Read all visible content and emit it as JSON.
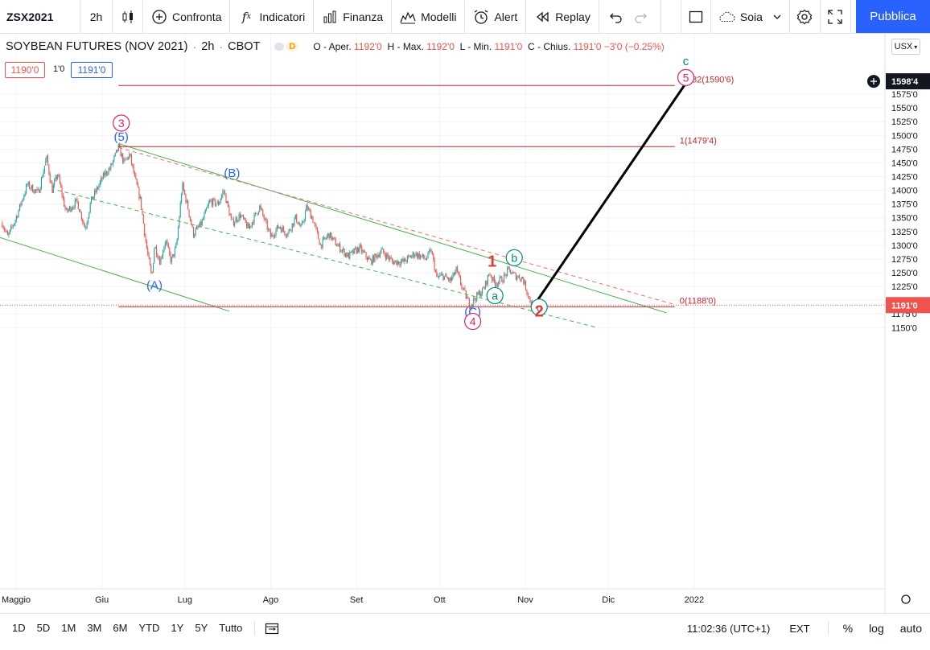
{
  "toolbar": {
    "symbol": "ZSX2021",
    "interval": "2h",
    "compare": "Confronta",
    "indicators": "Indicatori",
    "finance": "Finanza",
    "templates": "Modelli",
    "alert": "Alert",
    "replay": "Replay",
    "layout_name": "Soia",
    "publish": "Pubblica"
  },
  "legend": {
    "title": "SOYBEAN FUTURES (NOV 2021)",
    "interval": "2h",
    "exchange": "CBOT",
    "delay_badge": "D",
    "ohlc": {
      "o_label": "O - Aper.",
      "o": "1192'0",
      "h_label": "H - Max.",
      "h": "1192'0",
      "l_label": "L - Min.",
      "l": "1191'0",
      "c_label": "C - Chius.",
      "c": "1191'0",
      "change": "−3'0 (−0.25%)"
    },
    "bid": "1190'0",
    "spread": "1'0",
    "ask": "1191'0"
  },
  "currency": "USX",
  "colors": {
    "bull": "#26a69a",
    "bear": "#ef5350",
    "fib": "#c62828",
    "channel": "#4caf50",
    "channel_dashed_red": "#e57373",
    "wave_red": "#e53935",
    "wave_pink": "#e91e63",
    "wave_blue": "#2962ff",
    "wave_teal": "#00897b",
    "projection": "#000000",
    "accent": "#2962ff"
  },
  "chart_data": {
    "type": "candlestick",
    "x_axis": {
      "ticks": [
        "Maggio",
        "Giu",
        "Lug",
        "Ago",
        "Set",
        "Ott",
        "Nov",
        "Dic",
        "2022"
      ]
    },
    "y_axis": {
      "ticks": [
        "1150'0",
        "1175'0",
        "1200'0",
        "1225'0",
        "1250'0",
        "1275'0",
        "1300'0",
        "1325'0",
        "1350'0",
        "1375'0",
        "1400'0",
        "1425'0",
        "1450'0",
        "1475'0",
        "1500'0",
        "1525'0",
        "1550'0",
        "1575'0"
      ],
      "ylim": [
        1130,
        1615
      ]
    },
    "last_price_label": "1191'0",
    "crosshair_price_label": "1598'4",
    "price_path": [
      {
        "t": "2021-04-26",
        "p": 1340
      },
      {
        "t": "2021-04-28",
        "p": 1315
      },
      {
        "t": "2021-05-01",
        "p": 1350
      },
      {
        "t": "2021-05-05",
        "p": 1410
      },
      {
        "t": "2021-05-09",
        "p": 1395
      },
      {
        "t": "2021-05-12",
        "p": 1460
      },
      {
        "t": "2021-05-14",
        "p": 1400
      },
      {
        "t": "2021-05-16",
        "p": 1430
      },
      {
        "t": "2021-05-19",
        "p": 1360
      },
      {
        "t": "2021-05-23",
        "p": 1380
      },
      {
        "t": "2021-05-26",
        "p": 1330
      },
      {
        "t": "2021-05-28",
        "p": 1380
      },
      {
        "t": "2021-06-02",
        "p": 1430
      },
      {
        "t": "2021-06-04",
        "p": 1440
      },
      {
        "t": "2021-06-07",
        "p": 1478
      },
      {
        "t": "2021-06-09",
        "p": 1450
      },
      {
        "t": "2021-06-11",
        "p": 1465
      },
      {
        "t": "2021-06-13",
        "p": 1420
      },
      {
        "t": "2021-06-15",
        "p": 1380
      },
      {
        "t": "2021-06-17",
        "p": 1300
      },
      {
        "t": "2021-06-19",
        "p": 1240
      },
      {
        "t": "2021-06-20",
        "p": 1300
      },
      {
        "t": "2021-06-22",
        "p": 1270
      },
      {
        "t": "2021-06-24",
        "p": 1310
      },
      {
        "t": "2021-06-26",
        "p": 1270
      },
      {
        "t": "2021-06-28",
        "p": 1300
      },
      {
        "t": "2021-06-30",
        "p": 1410
      },
      {
        "t": "2021-07-02",
        "p": 1370
      },
      {
        "t": "2021-07-04",
        "p": 1320
      },
      {
        "t": "2021-07-07",
        "p": 1340
      },
      {
        "t": "2021-07-10",
        "p": 1380
      },
      {
        "t": "2021-07-13",
        "p": 1375
      },
      {
        "t": "2021-07-15",
        "p": 1400
      },
      {
        "t": "2021-07-18",
        "p": 1340
      },
      {
        "t": "2021-07-21",
        "p": 1355
      },
      {
        "t": "2021-07-24",
        "p": 1330
      },
      {
        "t": "2021-07-28",
        "p": 1370
      },
      {
        "t": "2021-08-01",
        "p": 1315
      },
      {
        "t": "2021-08-04",
        "p": 1335
      },
      {
        "t": "2021-08-07",
        "p": 1320
      },
      {
        "t": "2021-08-10",
        "p": 1350
      },
      {
        "t": "2021-08-12",
        "p": 1330
      },
      {
        "t": "2021-08-14",
        "p": 1370
      },
      {
        "t": "2021-08-16",
        "p": 1350
      },
      {
        "t": "2021-08-19",
        "p": 1300
      },
      {
        "t": "2021-08-22",
        "p": 1320
      },
      {
        "t": "2021-08-25",
        "p": 1300
      },
      {
        "t": "2021-08-29",
        "p": 1280
      },
      {
        "t": "2021-09-02",
        "p": 1295
      },
      {
        "t": "2021-09-06",
        "p": 1270
      },
      {
        "t": "2021-09-10",
        "p": 1290
      },
      {
        "t": "2021-09-14",
        "p": 1270
      },
      {
        "t": "2021-09-18",
        "p": 1270
      },
      {
        "t": "2021-09-22",
        "p": 1285
      },
      {
        "t": "2021-09-26",
        "p": 1275
      },
      {
        "t": "2021-09-28",
        "p": 1290
      },
      {
        "t": "2021-09-30",
        "p": 1240
      },
      {
        "t": "2021-10-02",
        "p": 1245
      },
      {
        "t": "2021-10-05",
        "p": 1235
      },
      {
        "t": "2021-10-07",
        "p": 1255
      },
      {
        "t": "2021-10-09",
        "p": 1225
      },
      {
        "t": "2021-10-12",
        "p": 1190
      },
      {
        "t": "2021-10-14",
        "p": 1205
      },
      {
        "t": "2021-10-17",
        "p": 1220
      },
      {
        "t": "2021-10-19",
        "p": 1250
      },
      {
        "t": "2021-10-21",
        "p": 1230
      },
      {
        "t": "2021-10-24",
        "p": 1240
      },
      {
        "t": "2021-10-26",
        "p": 1255
      },
      {
        "t": "2021-10-28",
        "p": 1245
      },
      {
        "t": "2021-10-31",
        "p": 1240
      },
      {
        "t": "2021-11-01",
        "p": 1225
      },
      {
        "t": "2021-11-03",
        "p": 1195
      },
      {
        "t": "2021-11-04",
        "p": 1191
      }
    ],
    "fib_levels": [
      {
        "label": "1.382(1590'6)",
        "value": 1590.75
      },
      {
        "label": "1(1479'4)",
        "value": 1479.5
      },
      {
        "label": "0(1188'0)",
        "value": 1188
      }
    ],
    "fib_x_range": [
      "2021-06-07",
      "2021-12-25"
    ],
    "channels": [
      {
        "style": "solid",
        "color": "channel",
        "from": {
          "t": "2021-06-07",
          "p": 1485
        },
        "to": {
          "t": "2021-12-22",
          "p": 1177
        }
      },
      {
        "style": "solid",
        "color": "channel",
        "from": {
          "t": "2021-04-24",
          "p": 1316
        },
        "to": {
          "t": "2021-07-17",
          "p": 1180
        }
      },
      {
        "style": "dashed",
        "color": "channel",
        "from": {
          "t": "2021-05-16",
          "p": 1400
        },
        "to": {
          "t": "2021-11-27",
          "p": 1150
        }
      },
      {
        "style": "dashed",
        "color": "channel_dashed_red",
        "from": {
          "t": "2021-06-07",
          "p": 1478
        },
        "to": {
          "t": "2021-12-25",
          "p": 1192
        }
      }
    ],
    "projection": {
      "from": {
        "t": "2021-11-05",
        "p": 1197
      },
      "to": {
        "t": "2021-12-29",
        "p": 1595
      }
    },
    "wave_labels": [
      {
        "text": "3",
        "t": "2021-06-08",
        "p": 1515,
        "color": "wave_pink",
        "circled": true
      },
      {
        "text": "(5)",
        "t": "2021-06-08",
        "p": 1490,
        "color": "wave_blue",
        "circled": false
      },
      {
        "text": "(B)",
        "t": "2021-07-18",
        "p": 1424,
        "color": "wave_blue",
        "circled": false
      },
      {
        "text": "(A)",
        "t": "2021-06-20",
        "p": 1220,
        "color": "wave_blue",
        "circled": false
      },
      {
        "text": "(C)",
        "t": "2021-10-13",
        "p": 1172,
        "color": "wave_blue",
        "circled": false
      },
      {
        "text": "4",
        "t": "2021-10-13",
        "p": 1154,
        "color": "wave_pink",
        "circled": true
      },
      {
        "text": "1",
        "t": "2021-10-20",
        "p": 1261,
        "color": "wave_red",
        "circled": false
      },
      {
        "text": "b",
        "t": "2021-10-28",
        "p": 1270,
        "color": "wave_teal",
        "circled": true
      },
      {
        "text": "a",
        "t": "2021-10-21",
        "p": 1201,
        "color": "wave_teal",
        "circled": true
      },
      {
        "text": "c",
        "t": "2021-11-06",
        "p": 1180,
        "color": "wave_teal",
        "circled": true
      },
      {
        "text": "2",
        "t": "2021-11-06",
        "p": 1170,
        "color": "wave_red",
        "circled": false
      },
      {
        "text": "5",
        "t": "2021-12-29",
        "p": 1598,
        "color": "wave_pink",
        "circled": true
      },
      {
        "text": "c",
        "t": "2021-12-29",
        "p": 1628,
        "color": "wave_teal",
        "circled": false
      }
    ],
    "grid": true
  },
  "bottombar": {
    "ranges": [
      "1D",
      "5D",
      "1M",
      "3M",
      "6M",
      "YTD",
      "1Y",
      "5Y",
      "Tutto"
    ],
    "time": "11:02:36 (UTC+1)",
    "session": "EXT",
    "percent": "%",
    "log": "log",
    "auto": "auto"
  },
  "icons": {
    "candles": "candles-icon",
    "compare": "plus-circle-icon",
    "indicators": "fx-icon",
    "finance": "bar-chart-icon",
    "templates": "templates-icon",
    "alert": "alarm-clock-icon",
    "replay": "rewind-icon",
    "undo": "undo-icon",
    "redo": "redo-icon",
    "fullscreen": "fullscreen-icon",
    "settings": "gear-icon",
    "snapshot": "camera-icon"
  }
}
